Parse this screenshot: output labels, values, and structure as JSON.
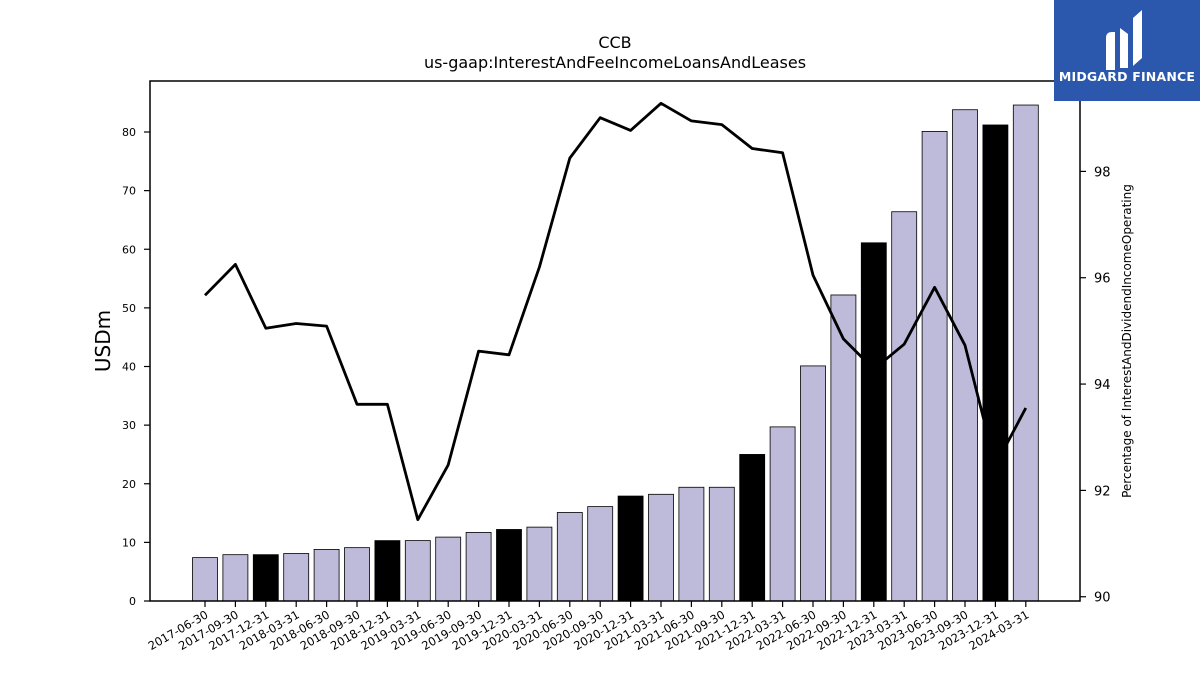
{
  "chart_data": {
    "type": "bar",
    "title": "CCB",
    "subtitle": "us-gaap:InterestAndFeeIncomeLoansAndLeases",
    "ylabel": "USDm",
    "y2label": "Percentage of InterestAndDividendIncomeOperating",
    "ylim": [
      0,
      88.7
    ],
    "y2lim": [
      89.92,
      99.7
    ],
    "yticks": [
      0,
      10,
      20,
      30,
      40,
      50,
      60,
      70,
      80
    ],
    "y2ticks": [
      90,
      92,
      94,
      96,
      98
    ],
    "categories": [
      "2017-06-30",
      "2017-09-30",
      "2017-12-31",
      "2018-03-31",
      "2018-06-30",
      "2018-09-30",
      "2018-12-31",
      "2019-03-31",
      "2019-06-30",
      "2019-09-30",
      "2019-12-31",
      "2020-03-31",
      "2020-06-30",
      "2020-09-30",
      "2020-12-31",
      "2021-03-31",
      "2021-06-30",
      "2021-09-30",
      "2021-12-31",
      "2022-03-31",
      "2022-06-30",
      "2022-09-30",
      "2022-12-31",
      "2023-03-31",
      "2023-06-30",
      "2023-09-30",
      "2023-12-31",
      "2024-03-31"
    ],
    "series": [
      {
        "kind": "bar",
        "values": [
          7.4,
          7.9,
          7.9,
          8.1,
          8.8,
          9.1,
          10.3,
          10.3,
          10.9,
          11.7,
          12.2,
          12.6,
          15.1,
          16.1,
          17.9,
          18.2,
          19.4,
          19.4,
          25.0,
          29.7,
          40.1,
          52.2,
          61.1,
          66.4,
          80.1,
          83.8,
          81.2,
          84.6
        ],
        "highlight": [
          false,
          false,
          true,
          false,
          false,
          false,
          true,
          false,
          false,
          false,
          true,
          false,
          false,
          false,
          true,
          false,
          false,
          false,
          true,
          false,
          false,
          false,
          true,
          false,
          false,
          false,
          true,
          false
        ]
      },
      {
        "kind": "line",
        "axis": "right",
        "values": [
          95.67,
          96.25,
          95.05,
          95.14,
          95.09,
          93.62,
          93.62,
          91.45,
          92.48,
          94.62,
          94.55,
          96.2,
          98.25,
          99.01,
          98.77,
          99.28,
          98.95,
          98.88,
          98.43,
          98.35,
          96.05,
          94.85,
          94.28,
          94.75,
          95.82,
          94.73,
          92.47,
          93.55
        ]
      }
    ],
    "colors": {
      "bar": "#bebada",
      "bar_highlight": "#000000",
      "line": "#000000"
    }
  },
  "logo": {
    "text": "MIDGARD FINANCE",
    "icon": "midgard-logo-icon"
  }
}
